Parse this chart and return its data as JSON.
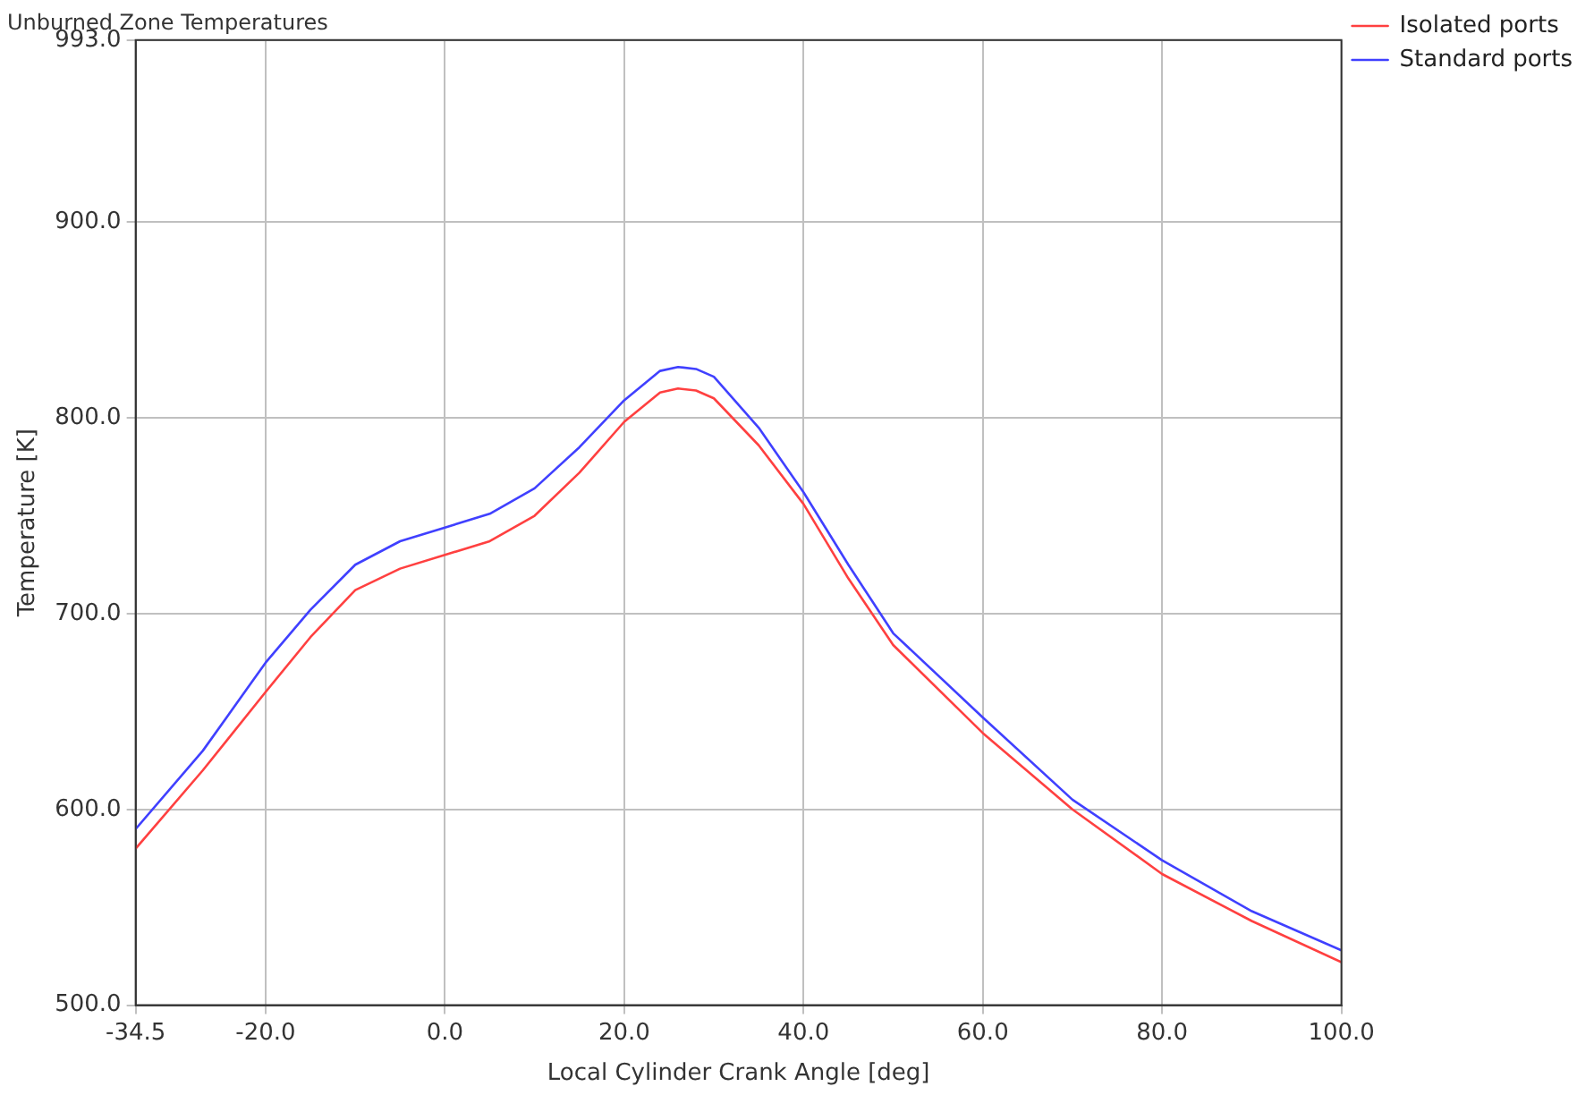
{
  "chart_data": {
    "type": "line",
    "title": "Unburned Zone Temperatures",
    "xlabel": "Local Cylinder Crank Angle [deg]",
    "ylabel": "Temperature [K]",
    "x": [
      -34.5,
      -27,
      -20,
      -15,
      -10,
      -5,
      0,
      5,
      10,
      15,
      20,
      24,
      26,
      28,
      30,
      35,
      40,
      45,
      50,
      60,
      70,
      80,
      90,
      100
    ],
    "series": [
      {
        "name": "Isolated ports",
        "color": "#ff4040",
        "values": [
          580,
          620,
          660,
          688,
          712,
          723,
          730,
          737,
          750,
          772,
          798,
          813,
          815,
          814,
          810,
          786,
          756,
          718,
          684,
          639,
          600,
          567,
          543,
          522
        ]
      },
      {
        "name": "Standard ports",
        "color": "#4040ff",
        "values": [
          590,
          630,
          675,
          702,
          725,
          737,
          744,
          751,
          764,
          785,
          809,
          824,
          826,
          825,
          821,
          795,
          762,
          725,
          690,
          647,
          605,
          574,
          548,
          528
        ]
      }
    ],
    "xlim": [
      -34.5,
      100
    ],
    "xticks": [
      {
        "value": -34.5,
        "label": "-34.5"
      },
      {
        "value": -20,
        "label": "-20.0"
      },
      {
        "value": 0,
        "label": "0.0"
      },
      {
        "value": 20,
        "label": "20.0"
      },
      {
        "value": 40,
        "label": "40.0"
      },
      {
        "value": 60,
        "label": "60.0"
      },
      {
        "value": 80,
        "label": "80.0"
      },
      {
        "value": 100,
        "label": "100.0"
      }
    ],
    "ylim": [
      500,
      993
    ],
    "yticks": [
      {
        "value": 500,
        "label": "500.0"
      },
      {
        "value": 600,
        "label": "600.0"
      },
      {
        "value": 700,
        "label": "700.0"
      },
      {
        "value": 800,
        "label": "800.0"
      },
      {
        "value": 900,
        "label": "900.0"
      },
      {
        "value": 993,
        "label": "993.0"
      }
    ],
    "grid": true,
    "legend": "top right",
    "marker": "none",
    "line_style": "solid"
  }
}
